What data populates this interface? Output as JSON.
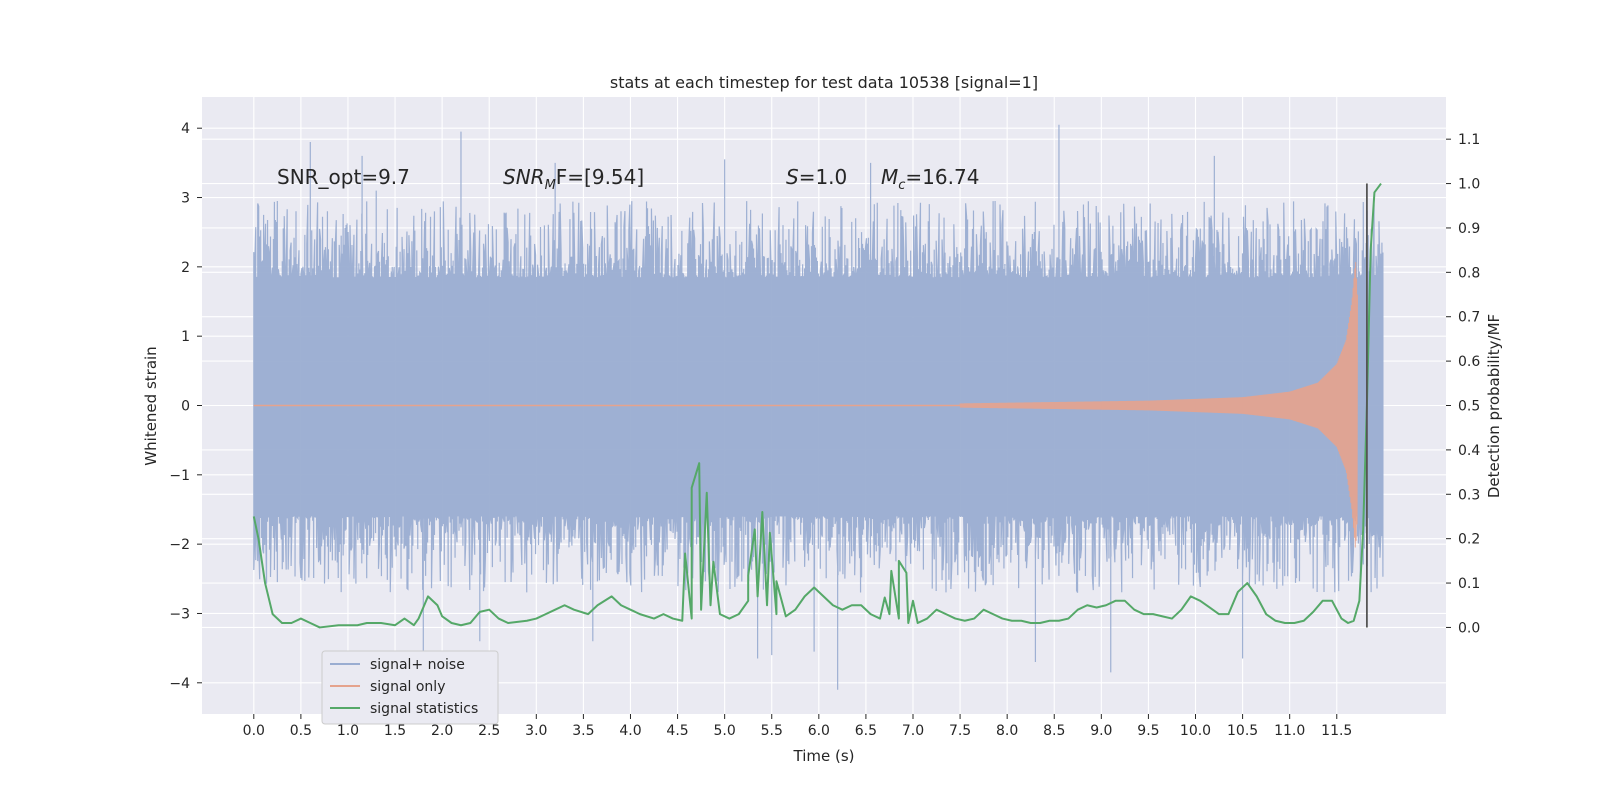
{
  "chart_data": {
    "type": "line",
    "title": "stats at each timestep for test data 10538 [signal=1]",
    "xlabel": "Time (s)",
    "ylabel": "Whitened strain",
    "y2label": "Detection probability/MF",
    "xlim": [
      -0.55,
      12.66
    ],
    "ylim": [
      -4.45,
      4.45
    ],
    "y2lim": [
      -0.195,
      1.195
    ],
    "grid": true,
    "legend_position": "lower-left",
    "x_ticks": [
      0.0,
      0.5,
      1.0,
      1.5,
      2.0,
      2.5,
      3.0,
      3.5,
      4.0,
      4.5,
      5.0,
      5.5,
      6.0,
      6.5,
      7.0,
      7.5,
      8.0,
      8.5,
      9.0,
      9.5,
      10.0,
      10.5,
      11.0,
      11.5
    ],
    "x_tick_labels": [
      "0.0",
      "0.5",
      "1.0",
      "1.5",
      "2.0",
      "2.5",
      "3.0",
      "3.5",
      "4.0",
      "4.5",
      "5.0",
      "5.5",
      "6.0",
      "6.5",
      "7.0",
      "7.5",
      "8.0",
      "8.5",
      "9.0",
      "9.5",
      "10.0",
      "10.5",
      "11.0",
      "11.5"
    ],
    "y_ticks": [
      4,
      3,
      2,
      1,
      0,
      -1,
      -2,
      -3,
      -4
    ],
    "y_tick_labels": [
      "4",
      "3",
      "2",
      "1",
      "0",
      "−1",
      "−2",
      "−3",
      "−4"
    ],
    "y2_ticks": [
      1.1,
      1.0,
      0.9,
      0.8,
      0.7,
      0.6,
      0.5,
      0.4,
      0.3,
      0.2,
      0.1,
      0.0
    ],
    "y2_tick_labels": [
      "1.1",
      "1.0",
      "0.9",
      "0.8",
      "0.7",
      "0.6",
      "0.5",
      "0.4",
      "0.3",
      "0.2",
      "0.1",
      "0.0"
    ],
    "annotations": {
      "snr_opt": "SNR_opt=9.7",
      "snr_mf_main": "SNR",
      "snr_mf_sub": "M",
      "snr_mf_rest": "F=[9.54]",
      "s_main": "S",
      "s_rest": "=1.0",
      "mc_main": "M",
      "mc_sub": "c",
      "mc_rest": "=16.74"
    },
    "vline_x": 11.82,
    "vline_range": [
      0.0,
      1.0
    ],
    "series": [
      {
        "name": "signal+ noise",
        "color": "#9aadd1",
        "x_start": 0.0,
        "x_end": 11.99,
        "band_min": -1.6,
        "band_max": 1.85,
        "spike_extremes": [
          {
            "x": 0.25,
            "y": 2.95
          },
          {
            "x": 0.6,
            "y": 3.8
          },
          {
            "x": 1.15,
            "y": 3.6
          },
          {
            "x": 1.3,
            "y": 3.1
          },
          {
            "x": 1.8,
            "y": -3.6
          },
          {
            "x": 2.2,
            "y": 3.95
          },
          {
            "x": 2.4,
            "y": -3.4
          },
          {
            "x": 3.2,
            "y": 3.5
          },
          {
            "x": 3.6,
            "y": -3.4
          },
          {
            "x": 4.8,
            "y": -0.95
          },
          {
            "x": 5.0,
            "y": 3.55
          },
          {
            "x": 5.35,
            "y": -3.65
          },
          {
            "x": 5.5,
            "y": -3.6
          },
          {
            "x": 5.95,
            "y": -3.55
          },
          {
            "x": 6.2,
            "y": -4.1
          },
          {
            "x": 6.55,
            "y": 3.5
          },
          {
            "x": 8.3,
            "y": -3.7
          },
          {
            "x": 8.55,
            "y": 4.05
          },
          {
            "x": 9.1,
            "y": -3.85
          },
          {
            "x": 10.2,
            "y": 3.6
          },
          {
            "x": 10.5,
            "y": -3.65
          }
        ]
      },
      {
        "name": "signal only",
        "color": "#e5a38d",
        "x_start": 7.5,
        "x_end": 11.72,
        "envelope": [
          {
            "x": 7.5,
            "y": 0.03
          },
          {
            "x": 8.5,
            "y": 0.05
          },
          {
            "x": 9.5,
            "y": 0.07
          },
          {
            "x": 10.5,
            "y": 0.12
          },
          {
            "x": 11.0,
            "y": 0.2
          },
          {
            "x": 11.3,
            "y": 0.33
          },
          {
            "x": 11.5,
            "y": 0.6
          },
          {
            "x": 11.6,
            "y": 0.95
          },
          {
            "x": 11.66,
            "y": 1.5
          },
          {
            "x": 11.7,
            "y": 2.1
          },
          {
            "x": 11.72,
            "y": 1.6
          }
        ]
      },
      {
        "name": "signal statistics",
        "color": "#55a868",
        "axis": "right",
        "points": [
          {
            "x": 0.0,
            "y": 0.25
          },
          {
            "x": 0.05,
            "y": 0.2
          },
          {
            "x": 0.12,
            "y": 0.1
          },
          {
            "x": 0.2,
            "y": 0.03
          },
          {
            "x": 0.3,
            "y": 0.01
          },
          {
            "x": 0.4,
            "y": 0.01
          },
          {
            "x": 0.5,
            "y": 0.02
          },
          {
            "x": 0.6,
            "y": 0.01
          },
          {
            "x": 0.7,
            "y": 0.0
          },
          {
            "x": 0.9,
            "y": 0.005
          },
          {
            "x": 1.0,
            "y": 0.005
          },
          {
            "x": 1.1,
            "y": 0.005
          },
          {
            "x": 1.2,
            "y": 0.01
          },
          {
            "x": 1.35,
            "y": 0.01
          },
          {
            "x": 1.5,
            "y": 0.005
          },
          {
            "x": 1.6,
            "y": 0.02
          },
          {
            "x": 1.7,
            "y": 0.005
          },
          {
            "x": 1.75,
            "y": 0.02
          },
          {
            "x": 1.85,
            "y": 0.07
          },
          {
            "x": 1.95,
            "y": 0.05
          },
          {
            "x": 2.0,
            "y": 0.025
          },
          {
            "x": 2.1,
            "y": 0.01
          },
          {
            "x": 2.2,
            "y": 0.005
          },
          {
            "x": 2.3,
            "y": 0.01
          },
          {
            "x": 2.4,
            "y": 0.035
          },
          {
            "x": 2.5,
            "y": 0.04
          },
          {
            "x": 2.6,
            "y": 0.02
          },
          {
            "x": 2.7,
            "y": 0.01
          },
          {
            "x": 2.9,
            "y": 0.015
          },
          {
            "x": 3.0,
            "y": 0.02
          },
          {
            "x": 3.1,
            "y": 0.03
          },
          {
            "x": 3.2,
            "y": 0.04
          },
          {
            "x": 3.3,
            "y": 0.05
          },
          {
            "x": 3.4,
            "y": 0.04
          },
          {
            "x": 3.55,
            "y": 0.03
          },
          {
            "x": 3.65,
            "y": 0.05
          },
          {
            "x": 3.8,
            "y": 0.07
          },
          {
            "x": 3.9,
            "y": 0.05
          },
          {
            "x": 4.0,
            "y": 0.04
          },
          {
            "x": 4.1,
            "y": 0.03
          },
          {
            "x": 4.25,
            "y": 0.02
          },
          {
            "x": 4.35,
            "y": 0.03
          },
          {
            "x": 4.45,
            "y": 0.02
          },
          {
            "x": 4.55,
            "y": 0.015
          },
          {
            "x": 4.65,
            "y": 0.02
          },
          {
            "x": 4.75,
            "y": 0.04
          },
          {
            "x": 4.85,
            "y": 0.05
          },
          {
            "x": 4.95,
            "y": 0.03
          },
          {
            "x": 5.05,
            "y": 0.02
          },
          {
            "x": 5.15,
            "y": 0.03
          },
          {
            "x": 5.25,
            "y": 0.06
          },
          {
            "x": 5.35,
            "y": 0.07
          },
          {
            "x": 5.45,
            "y": 0.05
          },
          {
            "x": 5.55,
            "y": 0.03
          },
          {
            "x": 5.65,
            "y": 0.025
          },
          {
            "x": 5.75,
            "y": 0.04
          },
          {
            "x": 5.85,
            "y": 0.07
          },
          {
            "x": 5.95,
            "y": 0.09
          },
          {
            "x": 6.05,
            "y": 0.07
          },
          {
            "x": 6.15,
            "y": 0.05
          },
          {
            "x": 6.25,
            "y": 0.04
          },
          {
            "x": 6.35,
            "y": 0.05
          },
          {
            "x": 6.45,
            "y": 0.05
          },
          {
            "x": 6.55,
            "y": 0.03
          },
          {
            "x": 6.65,
            "y": 0.02
          },
          {
            "x": 6.75,
            "y": 0.03
          },
          {
            "x": 6.85,
            "y": 0.02
          },
          {
            "x": 6.95,
            "y": 0.01
          },
          {
            "x": 7.05,
            "y": 0.01
          },
          {
            "x": 7.15,
            "y": 0.02
          },
          {
            "x": 7.25,
            "y": 0.04
          },
          {
            "x": 7.35,
            "y": 0.03
          },
          {
            "x": 7.45,
            "y": 0.02
          },
          {
            "x": 7.55,
            "y": 0.015
          },
          {
            "x": 7.65,
            "y": 0.02
          },
          {
            "x": 7.75,
            "y": 0.04
          },
          {
            "x": 7.85,
            "y": 0.03
          },
          {
            "x": 7.95,
            "y": 0.02
          },
          {
            "x": 8.05,
            "y": 0.015
          },
          {
            "x": 8.15,
            "y": 0.015
          },
          {
            "x": 8.25,
            "y": 0.01
          },
          {
            "x": 8.35,
            "y": 0.01
          },
          {
            "x": 8.45,
            "y": 0.015
          },
          {
            "x": 8.55,
            "y": 0.015
          },
          {
            "x": 8.65,
            "y": 0.02
          },
          {
            "x": 8.75,
            "y": 0.04
          },
          {
            "x": 8.85,
            "y": 0.05
          },
          {
            "x": 8.95,
            "y": 0.045
          },
          {
            "x": 9.05,
            "y": 0.05
          },
          {
            "x": 9.15,
            "y": 0.06
          },
          {
            "x": 9.25,
            "y": 0.06
          },
          {
            "x": 9.35,
            "y": 0.04
          },
          {
            "x": 9.45,
            "y": 0.03
          },
          {
            "x": 9.55,
            "y": 0.03
          },
          {
            "x": 9.65,
            "y": 0.025
          },
          {
            "x": 9.75,
            "y": 0.02
          },
          {
            "x": 9.85,
            "y": 0.04
          },
          {
            "x": 9.95,
            "y": 0.07
          },
          {
            "x": 10.05,
            "y": 0.06
          },
          {
            "x": 10.15,
            "y": 0.045
          },
          {
            "x": 10.25,
            "y": 0.03
          },
          {
            "x": 10.35,
            "y": 0.03
          },
          {
            "x": 10.45,
            "y": 0.08
          },
          {
            "x": 10.55,
            "y": 0.1
          },
          {
            "x": 10.65,
            "y": 0.07
          },
          {
            "x": 10.75,
            "y": 0.03
          },
          {
            "x": 10.85,
            "y": 0.015
          },
          {
            "x": 10.95,
            "y": 0.01
          },
          {
            "x": 11.05,
            "y": 0.01
          },
          {
            "x": 11.15,
            "y": 0.015
          },
          {
            "x": 11.25,
            "y": 0.035
          },
          {
            "x": 11.35,
            "y": 0.06
          },
          {
            "x": 11.45,
            "y": 0.06
          },
          {
            "x": 11.55,
            "y": 0.02
          },
          {
            "x": 11.62,
            "y": 0.01
          },
          {
            "x": 11.68,
            "y": 0.015
          },
          {
            "x": 11.74,
            "y": 0.06
          },
          {
            "x": 11.78,
            "y": 0.22
          },
          {
            "x": 11.82,
            "y": 0.5
          },
          {
            "x": 11.86,
            "y": 0.85
          },
          {
            "x": 11.9,
            "y": 0.98
          },
          {
            "x": 11.97,
            "y": 1.0
          }
        ],
        "peaks": [
          {
            "x": 4.73,
            "y": 0.37
          },
          {
            "x": 5.4,
            "y": 0.26
          },
          {
            "x": 6.85,
            "y": 0.15
          }
        ]
      }
    ]
  }
}
